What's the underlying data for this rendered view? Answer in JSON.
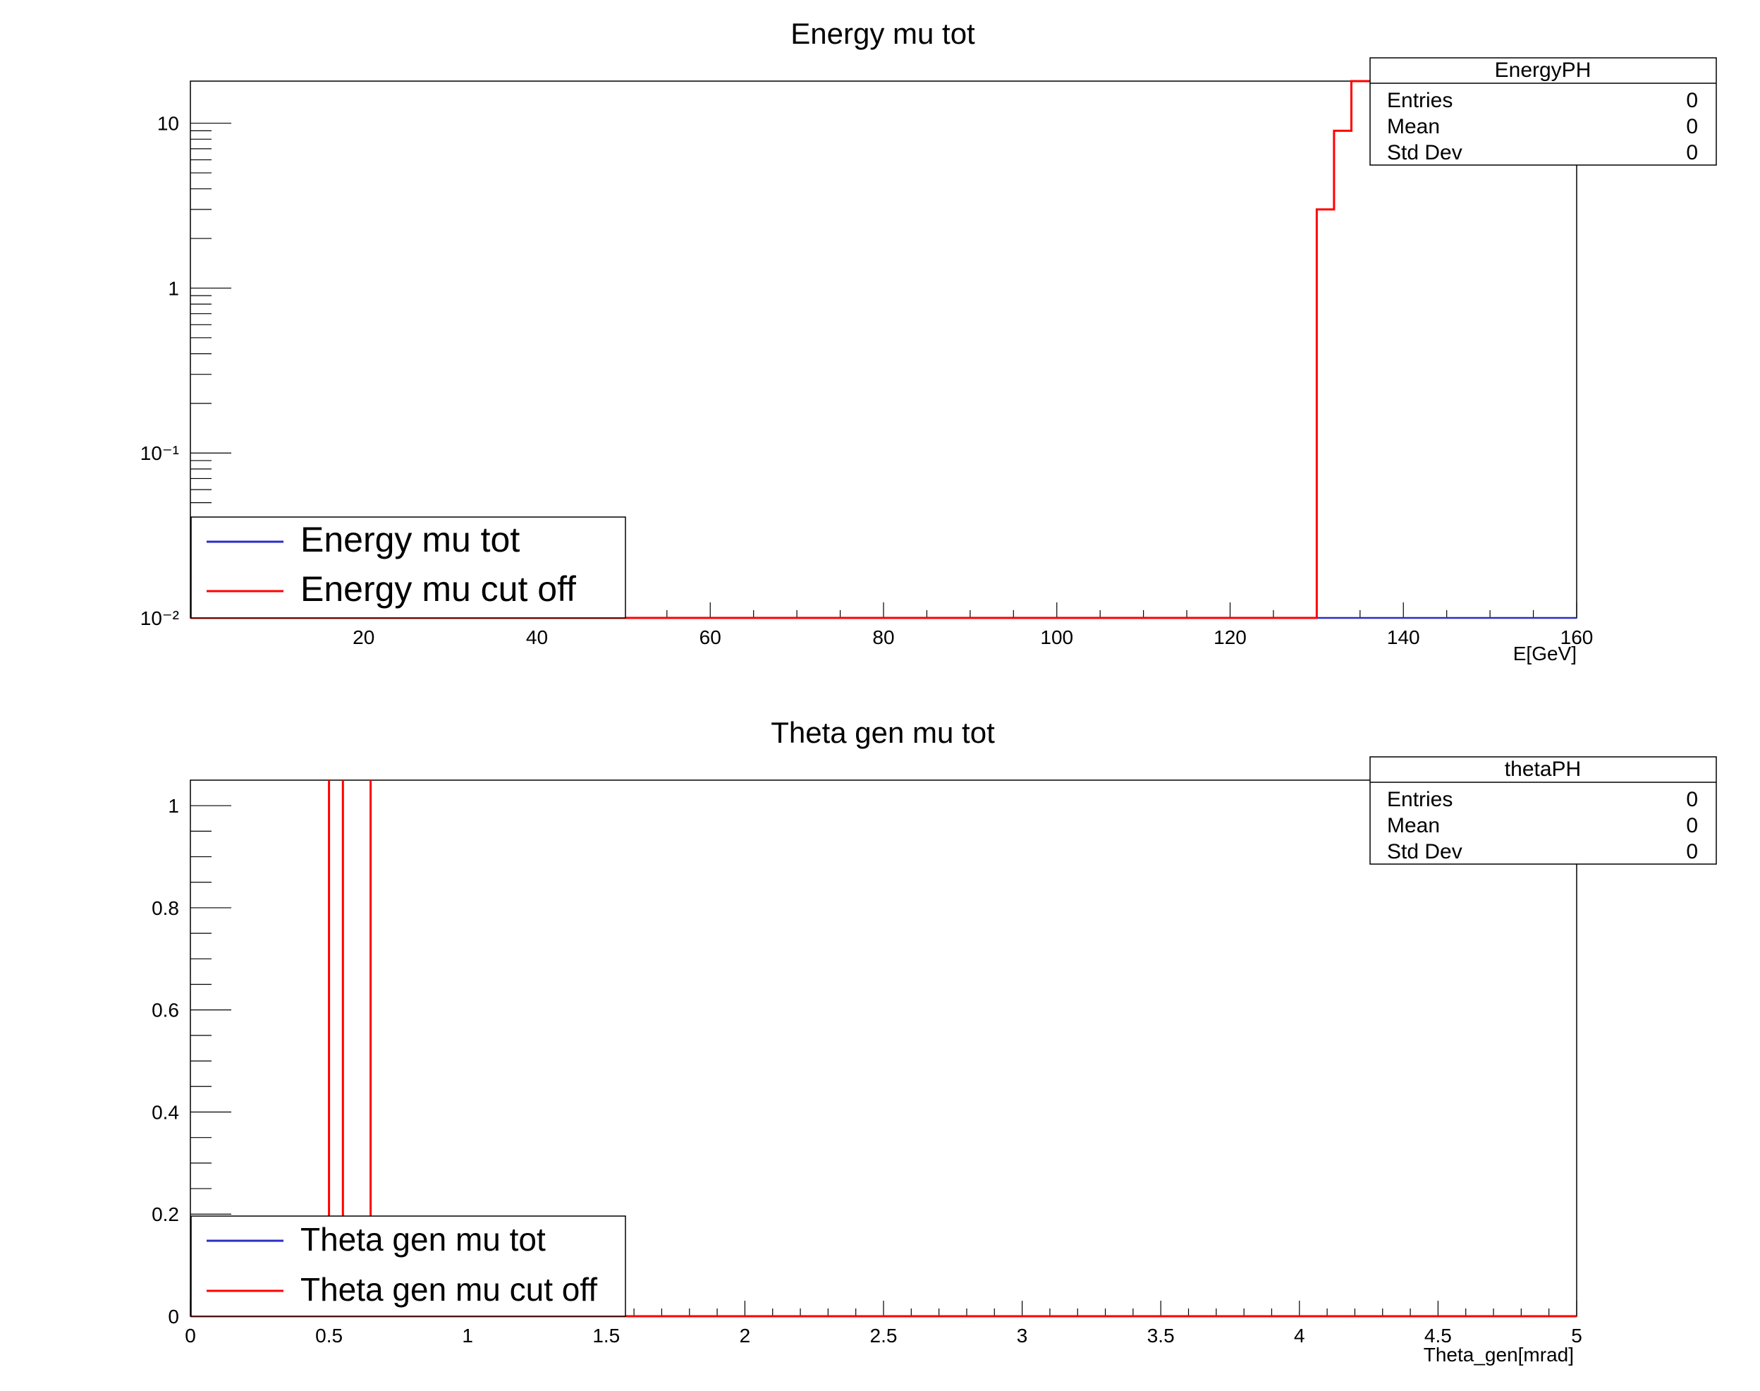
{
  "chart_data": [
    {
      "type": "step",
      "title": "Energy mu tot",
      "xlabel": "E[GeV]",
      "ylabel": "",
      "xlim": [
        0,
        160
      ],
      "ylim": [
        0.01,
        18
      ],
      "yscale": "log",
      "x_ticks": [
        "20",
        "40",
        "60",
        "80",
        "100",
        "120",
        "140",
        "160"
      ],
      "y_ticks": [
        "10",
        "1",
        "10⁻¹",
        "10⁻²"
      ],
      "stats_box": {
        "title": "EnergyPH",
        "rows": [
          {
            "label": "Entries",
            "value": "0"
          },
          {
            "label": "Mean",
            "value": "0"
          },
          {
            "label": "Std Dev",
            "value": "0"
          }
        ]
      },
      "legend": {
        "position": "bottom-left",
        "entries": [
          {
            "label": "Energy mu tot",
            "color": "#2c2cc8"
          },
          {
            "label": "Energy mu cut off",
            "color": "#ff0000"
          }
        ]
      },
      "series": [
        {
          "name": "Energy mu tot",
          "color": "#2c2cc8",
          "x": [
            130,
            160
          ],
          "y": [
            0.01,
            0.01
          ]
        },
        {
          "name": "Energy mu cut off",
          "color": "#ff0000",
          "x": [
            0,
            130,
            130,
            132,
            132,
            134,
            134,
            160
          ],
          "y": [
            0.01,
            0.01,
            3,
            3,
            9,
            9,
            18,
            18
          ]
        }
      ]
    },
    {
      "type": "step",
      "title": "Theta gen mu tot",
      "xlabel": "Theta_gen[mrad]",
      "ylabel": "",
      "xlim": [
        0,
        5
      ],
      "ylim": [
        0,
        1.05
      ],
      "yscale": "linear",
      "x_ticks": [
        "0",
        "0.5",
        "1",
        "1.5",
        "2",
        "2.5",
        "3",
        "3.5",
        "4",
        "4.5",
        "5"
      ],
      "y_ticks": [
        "0",
        "0.2",
        "0.4",
        "0.6",
        "0.8",
        "1"
      ],
      "stats_box": {
        "title": "thetaPH",
        "rows": [
          {
            "label": "Entries",
            "value": "0"
          },
          {
            "label": "Mean",
            "value": "0"
          },
          {
            "label": "Std Dev",
            "value": "0"
          }
        ]
      },
      "legend": {
        "position": "bottom-left",
        "entries": [
          {
            "label": "Theta gen mu tot",
            "color": "#2c2cc8"
          },
          {
            "label": "Theta gen mu cut off",
            "color": "#ff0000"
          }
        ]
      },
      "series": [
        {
          "name": "Theta gen mu tot",
          "color": "#2c2cc8",
          "x": [
            0,
            0.65
          ],
          "y": [
            0,
            0
          ]
        },
        {
          "name": "Theta gen mu cut off",
          "color": "#ff0000",
          "x": [
            0,
            0.5,
            0.5,
            0.5,
            0.55,
            0.55,
            0.55,
            0.65,
            0.65,
            0.65,
            5
          ],
          "y": [
            0,
            0,
            1.05,
            0,
            0,
            1.05,
            0,
            0,
            1.05,
            0,
            0
          ]
        }
      ]
    }
  ]
}
